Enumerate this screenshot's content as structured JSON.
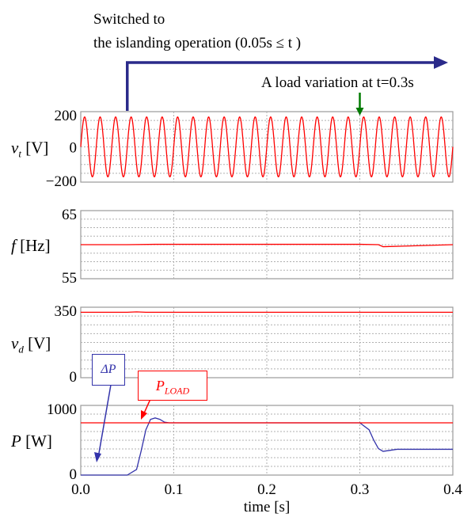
{
  "annotations": {
    "switch_line1": "Switched to",
    "switch_line2": "the islanding operation (0.05s ≤ t )",
    "load_variation": "A load variation at t=0.3s",
    "delta_p_label": "ΔP",
    "pload_label": "P",
    "pload_sub": "LOAD"
  },
  "colors": {
    "red": "#ff0000",
    "blue": "#3333aa",
    "green": "#007a00",
    "navy": "#2a2a8a"
  },
  "chart_data": [
    {
      "type": "line",
      "ylabel": "v_t [V]",
      "ylim": [
        -200,
        200
      ],
      "yticks": [
        "200",
        "0",
        "−200"
      ],
      "series": [
        {
          "color": "#ff0000",
          "kind": "sine",
          "amplitude": 170,
          "frequency_hz": 60,
          "x_range": [
            0,
            0.4
          ]
        }
      ]
    },
    {
      "type": "line",
      "ylabel": "f [Hz]",
      "ylim": [
        55,
        65
      ],
      "yticks": [
        "65",
        "55"
      ],
      "series": [
        {
          "color": "#ff0000",
          "x": [
            0,
            0.05,
            0.08,
            0.1,
            0.3,
            0.32,
            0.325,
            0.35,
            0.4
          ],
          "y": [
            60.0,
            60.0,
            60.05,
            60.05,
            60.05,
            60.0,
            59.7,
            59.8,
            60.0
          ]
        }
      ]
    },
    {
      "type": "line",
      "ylabel": "v_d [V]",
      "ylim": [
        0,
        350
      ],
      "yticks": [
        "350",
        "0"
      ],
      "series": [
        {
          "color": "#ff0000",
          "x": [
            0,
            0.05,
            0.06,
            0.07,
            0.4
          ],
          "y": [
            325,
            325,
            327,
            325,
            325
          ]
        }
      ]
    },
    {
      "type": "line",
      "ylabel": "P [W]",
      "xlabel": "time [s]",
      "xlim": [
        0,
        0.4
      ],
      "ylim": [
        0,
        1000
      ],
      "xticks": [
        "0.0",
        "0.1",
        "0.2",
        "0.3",
        "0.4"
      ],
      "yticks": [
        "1000",
        "0"
      ],
      "series": [
        {
          "name": "ΔP",
          "color": "#3333aa",
          "x": [
            0,
            0.05,
            0.06,
            0.065,
            0.07,
            0.075,
            0.08,
            0.085,
            0.09,
            0.095,
            0.1,
            0.3,
            0.31,
            0.315,
            0.32,
            0.325,
            0.33,
            0.34,
            0.4
          ],
          "y": [
            0,
            0,
            80,
            350,
            650,
            800,
            820,
            800,
            760,
            750,
            750,
            750,
            650,
            500,
            380,
            340,
            350,
            370,
            370
          ]
        },
        {
          "name": "P_LOAD",
          "color": "#ff0000",
          "x": [
            0,
            0.4
          ],
          "y": [
            750,
            750
          ]
        }
      ]
    }
  ]
}
